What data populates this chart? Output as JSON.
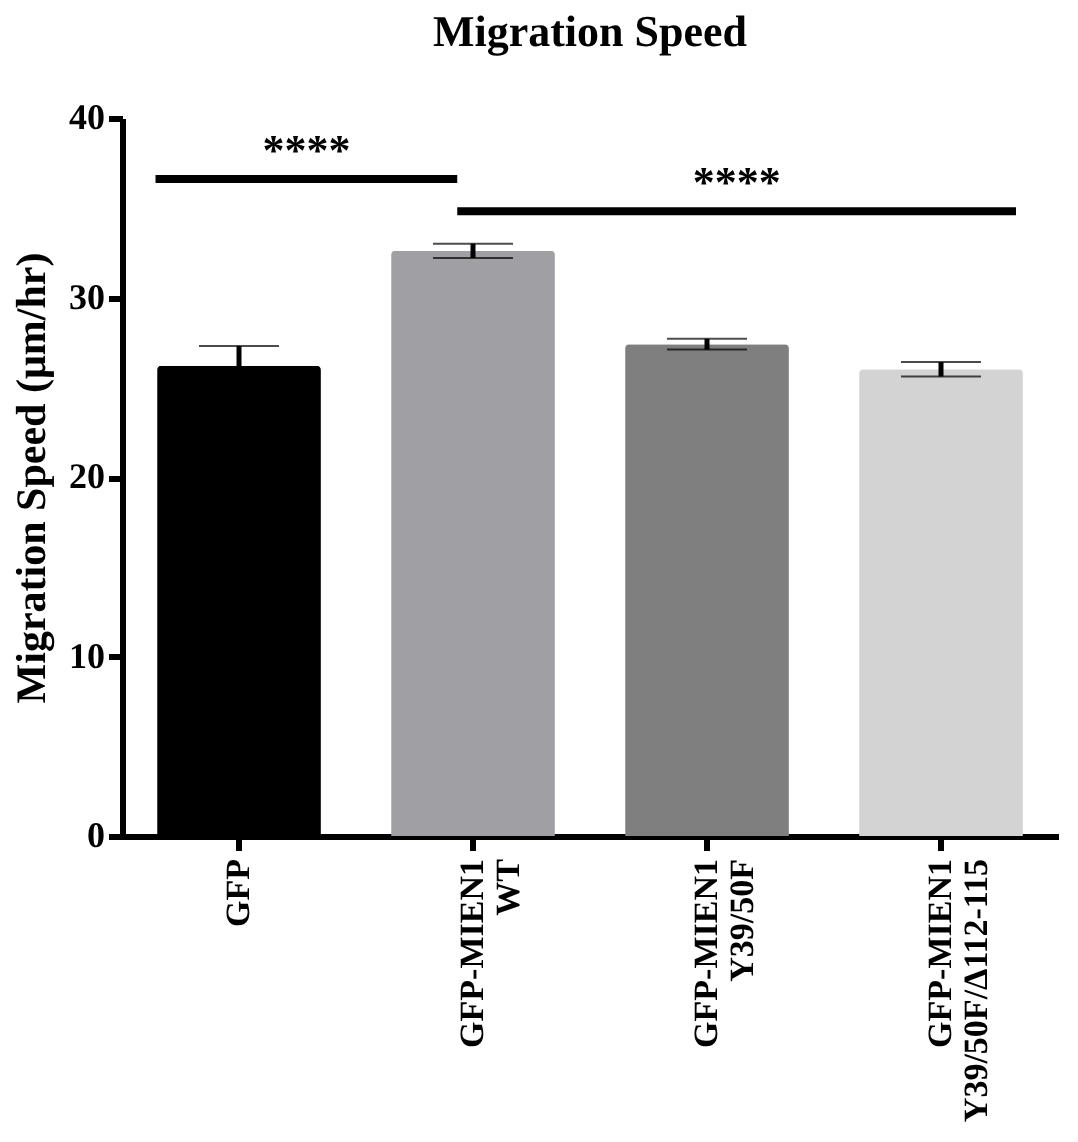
{
  "chart_data": {
    "type": "bar",
    "title": "Migration Speed",
    "ylabel": "Migration Speed (μm/hr)",
    "categories": [
      "GFP",
      "GFP-MIEN1\nWT",
      "GFP-MIEN1\nY39/50F",
      "GFP-MIEN1\nY39/50F/Δ112-115"
    ],
    "values": [
      26.2,
      32.6,
      27.4,
      26.0
    ],
    "colors": [
      "#000000",
      "#a09fa4",
      "#7f7f7f",
      "#d3d3d3"
    ],
    "errors": [
      1.1,
      0.4,
      0.3,
      0.4
    ],
    "ylim": [
      0,
      40
    ],
    "yticks": [
      0,
      10,
      20,
      30,
      40
    ],
    "annotations": [
      "****",
      "****"
    ],
    "grid": false
  }
}
